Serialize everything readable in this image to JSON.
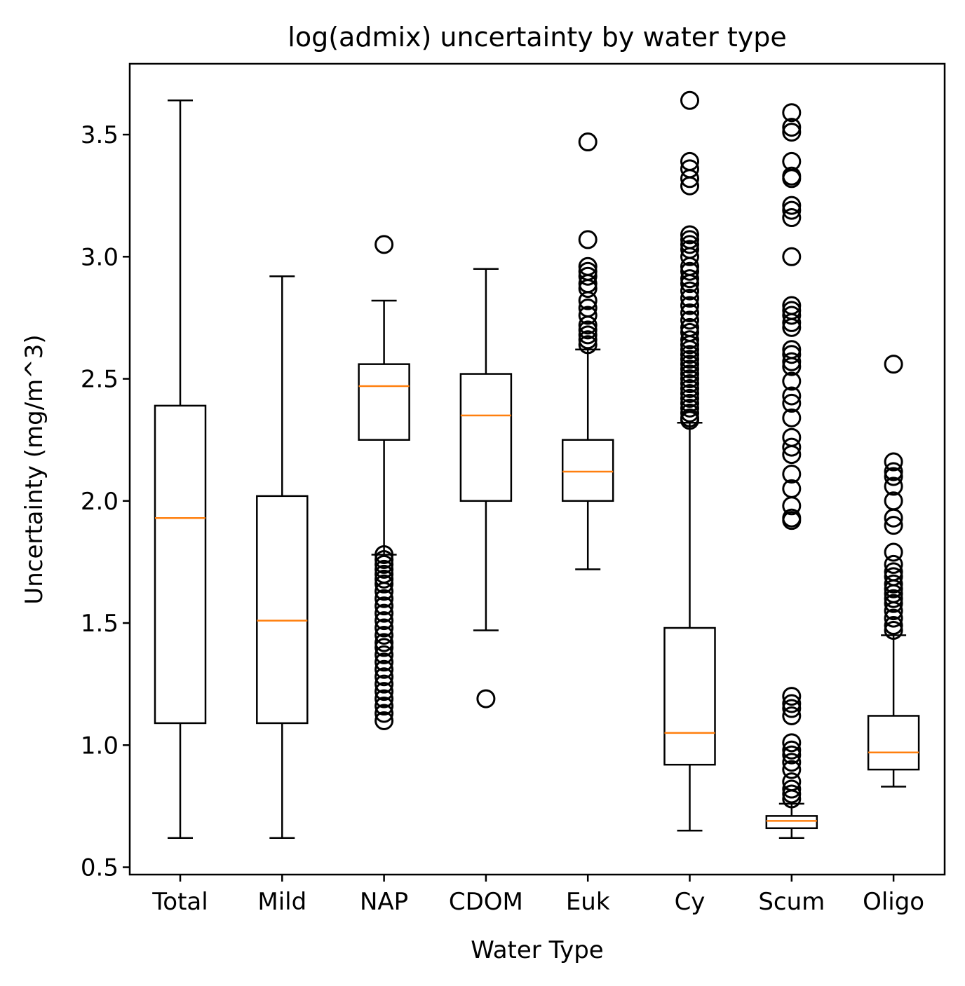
{
  "chart_data": {
    "type": "box",
    "title": "log(admix) uncertainty by water type",
    "xlabel": "Water Type",
    "ylabel": "Uncertainty (mg/m^3)",
    "ylim": [
      0.47,
      3.79
    ],
    "yticks": [
      0.5,
      1.0,
      1.5,
      2.0,
      2.5,
      3.0,
      3.5
    ],
    "yticklabels": [
      "0.5",
      "1.0",
      "1.5",
      "2.0",
      "2.5",
      "3.0",
      "3.5"
    ],
    "categories": [
      "Total",
      "Mild",
      "NAP",
      "CDOM",
      "Euk",
      "Cy",
      "Scum",
      "Oligo"
    ],
    "grid": false,
    "colors": {
      "box": "#000000",
      "median": "#ff7f0e",
      "flier": "#000000"
    },
    "boxes": [
      {
        "name": "Total",
        "whisker_low": 0.62,
        "q1": 1.09,
        "median": 1.93,
        "q3": 2.39,
        "whisker_high": 3.64,
        "fliers": []
      },
      {
        "name": "Mild",
        "whisker_low": 0.62,
        "q1": 1.09,
        "median": 1.51,
        "q3": 2.02,
        "whisker_high": 2.92,
        "fliers": []
      },
      {
        "name": "NAP",
        "whisker_low": 1.78,
        "q1": 2.25,
        "median": 2.47,
        "q3": 2.56,
        "whisker_high": 2.82,
        "fliers": [
          3.05,
          1.78,
          1.76,
          1.74,
          1.72,
          1.7,
          1.68,
          1.66,
          1.63,
          1.6,
          1.57,
          1.54,
          1.51,
          1.48,
          1.45,
          1.42,
          1.4,
          1.37,
          1.34,
          1.31,
          1.28,
          1.25,
          1.22,
          1.19,
          1.16,
          1.13,
          1.1
        ]
      },
      {
        "name": "CDOM",
        "whisker_low": 1.47,
        "q1": 2.0,
        "median": 2.35,
        "q3": 2.52,
        "whisker_high": 2.95,
        "fliers": [
          1.19
        ]
      },
      {
        "name": "Euk",
        "whisker_low": 1.72,
        "q1": 2.0,
        "median": 2.12,
        "q3": 2.25,
        "whisker_high": 2.62,
        "fliers": [
          3.47,
          3.07,
          2.96,
          2.94,
          2.92,
          2.89,
          2.87,
          2.82,
          2.79,
          2.76,
          2.72,
          2.7,
          2.68,
          2.66,
          2.64
        ]
      },
      {
        "name": "Cy",
        "whisker_low": 0.65,
        "q1": 0.92,
        "median": 1.05,
        "q3": 1.48,
        "whisker_high": 2.32,
        "fliers": [
          3.64,
          3.39,
          3.36,
          3.32,
          3.29,
          3.09,
          3.07,
          3.05,
          3.03,
          3.0,
          2.96,
          2.94,
          2.91,
          2.89,
          2.86,
          2.83,
          2.8,
          2.77,
          2.74,
          2.71,
          2.69,
          2.66,
          2.64,
          2.62,
          2.6,
          2.58,
          2.56,
          2.54,
          2.52,
          2.5,
          2.48,
          2.46,
          2.44,
          2.42,
          2.4,
          2.38,
          2.36,
          2.34,
          2.33
        ]
      },
      {
        "name": "Scum",
        "whisker_low": 0.62,
        "q1": 0.66,
        "median": 0.69,
        "q3": 0.71,
        "whisker_high": 0.76,
        "fliers": [
          3.59,
          3.53,
          3.51,
          3.39,
          3.33,
          3.32,
          3.21,
          3.19,
          3.16,
          3.0,
          2.8,
          2.78,
          2.76,
          2.73,
          2.71,
          2.62,
          2.6,
          2.57,
          2.55,
          2.49,
          2.43,
          2.4,
          2.34,
          2.26,
          2.22,
          2.19,
          2.11,
          2.05,
          1.98,
          1.93,
          1.92,
          1.2,
          1.17,
          1.15,
          1.12,
          1.01,
          0.98,
          0.96,
          0.93,
          0.9,
          0.85,
          0.82,
          0.8,
          0.78
        ]
      },
      {
        "name": "Oligo",
        "whisker_low": 0.83,
        "q1": 0.9,
        "median": 0.97,
        "q3": 1.12,
        "whisker_high": 1.45,
        "fliers": [
          2.56,
          2.16,
          2.12,
          2.1,
          2.06,
          2.0,
          1.93,
          1.9,
          1.79,
          1.74,
          1.71,
          1.69,
          1.66,
          1.64,
          1.62,
          1.6,
          1.58,
          1.55,
          1.52,
          1.49,
          1.47
        ]
      }
    ]
  }
}
